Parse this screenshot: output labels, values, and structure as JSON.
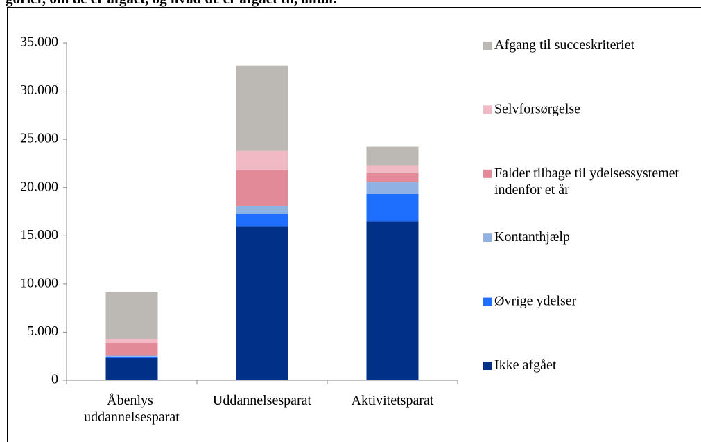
{
  "chart_data": {
    "type": "stacked_bar",
    "title": "gorier, om de er afgået, og hvad de er afgået til, antal.",
    "categories": [
      "Åbenlys uddannelsesparat",
      "Uddannelsesparat",
      "Aktivitetsparat"
    ],
    "series": [
      {
        "name": "Ikke afgået",
        "color": "#003087",
        "values": [
          2300,
          16000,
          16500
        ]
      },
      {
        "name": "Øvrige ydelser",
        "color": "#1f6fff",
        "values": [
          150,
          1250,
          2850
        ]
      },
      {
        "name": "Kontanthjælp",
        "color": "#8fb1e3",
        "values": [
          100,
          800,
          1200
        ]
      },
      {
        "name": "Falder tilbage til ydelsessystemet indenfor et år",
        "color": "#e28a98",
        "values": [
          1350,
          3750,
          950
        ]
      },
      {
        "name": "Selvforsørgelse",
        "color": "#f0b9c3",
        "values": [
          400,
          2000,
          800
        ]
      },
      {
        "name": "Afgang til succeskriteriet",
        "color": "#bcb8b3",
        "values": [
          4900,
          8850,
          1950
        ]
      }
    ],
    "ylim": [
      0,
      35000
    ],
    "yticks": [
      0,
      {
        "value": 5000,
        "label": "5.000"
      },
      {
        "value": 10000,
        "label": "10.000"
      },
      {
        "value": 15000,
        "label": "15.000"
      },
      {
        "value": 20000,
        "label": "20.000"
      },
      {
        "value": 25000,
        "label": "25.000"
      },
      {
        "value": 30000,
        "label": "30.000"
      },
      {
        "value": 35000,
        "label": "35.000"
      }
    ],
    "legend": "right"
  }
}
